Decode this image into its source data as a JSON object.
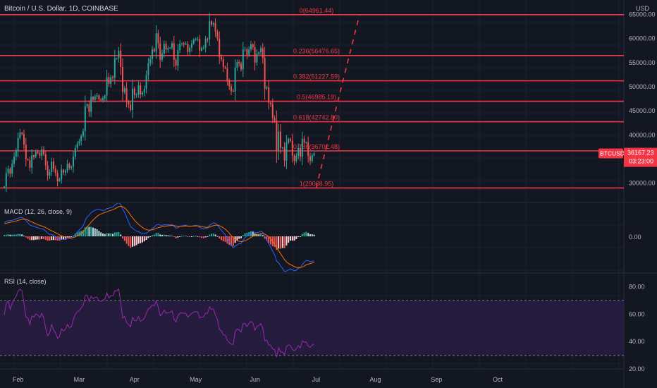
{
  "header": {
    "title": "Bitcoin / U.S. Dollar, 1D, COINBASE",
    "currency": "USD"
  },
  "colors": {
    "background": "#131722",
    "grid": "#1e222d",
    "up": "#26a69a",
    "down": "#ef5350",
    "fib": "#f23645",
    "macd": "#2962ff",
    "signal": "#ff6d00",
    "rsi": "#9c27b0",
    "rsi_band": "#2a1e45"
  },
  "price_badge": {
    "symbol": "BTCUSD",
    "price": "36167.23",
    "countdown": "03:23:00"
  },
  "macd_label": "MACD (12, 26, close, 9)",
  "macd_zero_label": "0.00",
  "rsi_label": "RSI (14, close)",
  "chart_data": {
    "type": "candlestick",
    "title": "Bitcoin / U.S. Dollar, 1D, COINBASE",
    "price_axis": {
      "unit": "USD",
      "range": [
        26000,
        68000
      ],
      "ticks": [
        "65000.00",
        "60000.00",
        "55000.00",
        "50000.00",
        "45000.00",
        "40000.00",
        "35000.00",
        "30000.00"
      ]
    },
    "x_axis": {
      "ticks": [
        "Feb",
        "Mar",
        "Apr",
        "May",
        "Jun",
        "Jul",
        "Aug",
        "Sep",
        "Oct"
      ]
    },
    "fib_levels": [
      {
        "label": "0(64961.44)",
        "value": 64961.44
      },
      {
        "label": "0.236(56476.65)",
        "value": 56476.65
      },
      {
        "label": "0.382(51227.59)",
        "value": 51227.59
      },
      {
        "label": "0.5(46985.19)",
        "value": 46985.19
      },
      {
        "label": "0.618(42742.80)",
        "value": 42742.8
      },
      {
        "label": "0.786(36702.48)",
        "value": 36702.48
      },
      {
        "label": "1(29008.95)",
        "value": 29008.95
      }
    ],
    "projection": {
      "from_price": 29008.95,
      "to_price": 64961.44,
      "from_day": 158,
      "to_day": 180
    },
    "closes": [
      29300,
      32100,
      33000,
      32000,
      34000,
      35500,
      36800,
      39400,
      40500,
      40200,
      38000,
      35000,
      34800,
      33200,
      35800,
      35500,
      36500,
      36300,
      35700,
      37000,
      36000,
      33700,
      31600,
      32300,
      34500,
      33000,
      32100,
      30400,
      30800,
      32800,
      32200,
      32600,
      34000,
      33200,
      33400,
      35500,
      37300,
      38200,
      38700,
      39800,
      40800,
      46000,
      46400,
      44800,
      47900,
      47300,
      48000,
      48200,
      47400,
      47200,
      47600,
      48200,
      52000,
      50600,
      52000,
      51900,
      55900,
      55900,
      57500,
      54100,
      48900,
      49700,
      47000,
      46300,
      45200,
      49600,
      48300,
      48400,
      50300,
      48400,
      48800,
      49600,
      52400,
      54900,
      55800,
      57800,
      57300,
      61100,
      59000,
      55600,
      56900,
      58900,
      57700,
      58000,
      58100,
      59000,
      55600,
      54400,
      57600,
      58900,
      59000,
      58800,
      58900,
      57200,
      58100,
      59000,
      59800,
      59900,
      59900,
      57500,
      58000,
      58100,
      59900,
      59800,
      63600,
      62900,
      63200,
      61400,
      60000,
      56200,
      55700,
      54100,
      53800,
      51300,
      50100,
      49100,
      49000,
      54000,
      55100,
      54800,
      53600,
      57700,
      57800,
      56600,
      57800,
      58800,
      58200,
      55000,
      56800,
      57200,
      58000,
      56000,
      49600,
      49900,
      46700,
      46400,
      43500,
      42900,
      36700,
      40700,
      37300,
      37400,
      34700,
      38400,
      39200,
      38800,
      35700,
      34600,
      35700,
      37300,
      35500,
      39200,
      38400,
      38500,
      35600,
      34600,
      35800,
      36167
    ],
    "macd": {
      "macd": [
        1650,
        1747,
        1850,
        1850,
        1900,
        1960,
        2038,
        2161,
        2230,
        2238,
        2108,
        1867,
        1620,
        1352,
        1257,
        1148,
        1091,
        1021,
        910,
        899,
        814,
        608,
        385,
        254,
        218,
        117,
        -25,
        -211,
        -342,
        -340,
        -371,
        -364,
        -280,
        -267,
        -244,
        -52,
        242,
        528,
        750,
        987,
        1252,
        1859,
        2303,
        2499,
        2794,
        2950,
        3093,
        3198,
        3180,
        3120,
        3065,
        3073,
        3289,
        3319,
        3419,
        3439,
        3714,
        3853,
        4012,
        3778,
        3233,
        2822,
        2255,
        1699,
        1143,
        972,
        757,
        618,
        550,
        414,
        334,
        298,
        381,
        542,
        713,
        921,
        1056,
        1323,
        1434,
        1308,
        1297,
        1375,
        1366,
        1365,
        1354,
        1389,
        1181,
        955,
        1025,
        1156,
        1239,
        1280,
        1313,
        1195,
        1181,
        1204,
        1257,
        1289,
        1252,
        1091,
        970,
        877,
        941,
        985,
        1298,
        1475,
        1602,
        1530,
        1348,
        1000,
        714,
        432,
        191,
        -223,
        -636,
        -1037,
        -1340,
        -1153,
        -996,
        -876,
        -861,
        -452,
        -139,
        24,
        225,
        455,
        582,
        433,
        451,
        492,
        582,
        473,
        -16,
        -380,
        -883,
        -1280,
        -1776,
        -2193,
        -2925,
        -3128,
        -3517,
        -3781,
        -4148,
        -4098,
        -3963,
        -3840,
        -3960,
        -4084,
        -3990,
        -3758,
        -3714,
        -3339,
        -3080,
        -2848,
        -2885,
        -2980,
        -2926,
        -2914
      ],
      "signal": [
        1500,
        1549,
        1609,
        1657,
        1706,
        1757,
        1813,
        1883,
        1952,
        2009,
        2029,
        1996,
        1921,
        1807,
        1697,
        1587,
        1488,
        1395,
        1298,
        1218,
        1137,
        1031,
        902,
        772,
        661,
        552,
        437,
        307,
        177,
        74,
        -15,
        -85,
        -124,
        -153,
        -171,
        -147,
        -69,
        50,
        190,
        350,
        530,
        796,
        1097,
        1378,
        1661,
        1919,
        2153,
        2362,
        2525,
        2644,
        2728,
        2797,
        2896,
        2980,
        3068,
        3142,
        3256,
        3376,
        3503,
        3558,
        3493,
        3359,
        3138,
        2851,
        2509,
        2202,
        1913,
        1654,
        1433,
        1229,
        1050,
        899,
        796,
        745,
        739,
        775,
        831,
        930,
        1031,
        1087,
        1129,
        1178,
        1216,
        1245,
        1267,
        1291,
        1269,
        1206,
        1170,
        1167,
        1181,
        1201,
        1223,
        1217,
        1210,
        1209,
        1218,
        1232,
        1236,
        1207,
        1160,
        1103,
        1071,
        1054,
        1103,
        1177,
        1262,
        1316,
        1322,
        1257,
        1149,
        1005,
        842,
        629,
        376,
        93,
        -193,
        -385,
        -507,
        -581,
        -637,
        -600,
        -508,
        -401,
        -276,
        -130,
        12,
        96,
        167,
        232,
        302,
        336,
        265,
        136,
        -68,
        -311,
        -604,
        -922,
        -1323,
        -1684,
        -2051,
        -2397,
        -2747,
        -3017,
        -3206,
        -3333,
        -3459,
        -3584,
        -3665,
        -3684,
        -3690,
        -3620,
        -3512,
        -3379,
        -3281,
        -3220,
        -3161,
        -3111
      ],
      "hist": [
        150,
        198,
        241,
        193,
        194,
        203,
        225,
        278,
        278,
        229,
        79,
        -129,
        -301,
        -455,
        -440,
        -439,
        -397,
        -374,
        -388,
        -319,
        -323,
        -423,
        -517,
        -518,
        -443,
        -435,
        -462,
        -518,
        -519,
        -414,
        -356,
        -279,
        -156,
        -114,
        -73,
        95,
        311,
        478,
        560,
        637,
        722,
        1063,
        1206,
        1121,
        1133,
        1031,
        940,
        836,
        655,
        476,
        337,
        276,
        393,
        339,
        351,
        297,
        458,
        477,
        509,
        220,
        -260,
        -537,
        -883,
        -1152,
        -1366,
        -1230,
        -1156,
        -1036,
        -883,
        -815,
        -716,
        -601,
        -415,
        -203,
        -26,
        146,
        225,
        393,
        403,
        221,
        168,
        197,
        150,
        120,
        87,
        98,
        -88,
        -251,
        -145,
        -11,
        58,
        79,
        90,
        -22,
        -29,
        -5,
        39,
        57,
        16,
        -116,
        -190,
        -226,
        -130,
        -69,
        195,
        298,
        340,
        214,
        26,
        -257,
        -435,
        -573,
        -651,
        -852,
        -1012,
        -1130,
        -1147,
        -768,
        -489,
        -295,
        -224,
        148,
        369,
        425,
        501,
        585,
        570,
        337,
        284,
        260,
        280,
        137,
        -281,
        -516,
        -815,
        -969,
        -1172,
        -1271,
        -1602,
        -1444,
        -1466,
        -1384,
        -1401,
        -1081,
        -757,
        -507,
        -501,
        -500,
        -325,
        -74,
        -24,
        281,
        432,
        531,
        396,
        240,
        235,
        197
      ]
    },
    "rsi": {
      "upper": 70,
      "lower": 30,
      "ticks": [
        "80.00",
        "60.00",
        "40.00",
        "20.00"
      ],
      "values": [
        59.4,
        67.7,
        69.6,
        63.6,
        67.8,
        70.6,
        72.9,
        76.8,
        78.2,
        77.1,
        67.8,
        57.8,
        57.2,
        52.5,
        58.7,
        57.8,
        60.1,
        59.4,
        57.3,
        60.6,
        57.1,
        49.6,
        44.3,
        46.3,
        52.4,
        48.5,
        46.3,
        42.4,
        43.6,
        49.3,
        47.8,
        48.8,
        52.5,
        50.2,
        50.7,
        55.9,
        59.9,
        61.7,
        62.7,
        64.6,
        66.4,
        73.5,
        73.9,
        69.2,
        72.9,
        71.2,
        72.2,
        72.4,
        69.9,
        69.3,
        70.1,
        71.0,
        75.6,
        71.7,
        73.5,
        73.3,
        77.0,
        77.0,
        78.3,
        68.7,
        57.1,
        58.3,
        53.8,
        52.6,
        50.8,
        57.6,
        55.2,
        55.3,
        58.1,
        54.9,
        55.6,
        56.9,
        60.8,
        63.8,
        64.8,
        66.8,
        65.9,
        69.8,
        65.2,
        58.7,
        60.4,
        62.9,
        60.7,
        61.1,
        61.2,
        62.3,
        56.2,
        54.3,
        58.9,
        60.7,
        60.9,
        60.6,
        60.7,
        57.9,
        59.2,
        60.5,
        61.6,
        61.7,
        61.7,
        57.3,
        57.9,
        58.0,
        60.7,
        60.6,
        65.5,
        63.4,
        63.7,
        59.4,
        56.3,
        48.7,
        47.8,
        45.1,
        44.6,
        40.9,
        39.3,
        38.0,
        37.9,
        47.3,
        49.1,
        48.5,
        46.8,
        53.0,
        53.1,
        51.1,
        53.1,
        54.7,
        53.6,
        48.2,
        51.2,
        51.8,
        53.1,
        49.7,
        40.6,
        41.0,
        37.6,
        37.3,
        34.6,
        34.1,
        28.7,
        35.4,
        32.3,
        32.4,
        30.5,
        36.4,
        37.6,
        37.1,
        34.2,
        33.3,
        34.9,
        37.1,
        35.3,
        40.5,
        39.5,
        39.7,
        36.7,
        35.8,
        37.3,
        38.2
      ]
    }
  }
}
